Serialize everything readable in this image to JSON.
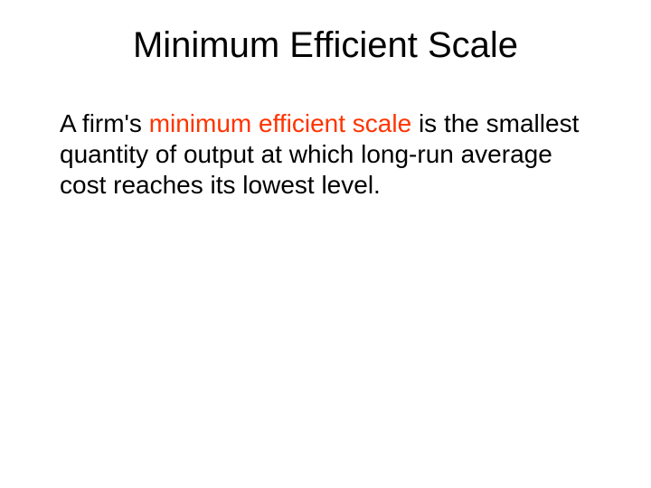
{
  "slide": {
    "title": "Minimum Efficient Scale",
    "body_pre": "A firm's ",
    "body_term": "minimum efficient scale",
    "body_post": " is the smallest quantity of output at which long-run average cost reaches its lowest level."
  },
  "style": {
    "background_color": "#ffffff",
    "title_color": "#000000",
    "body_color": "#000000",
    "term_color": "#ff3300",
    "title_fontsize": 40,
    "body_fontsize": 28,
    "font_family": "Arial"
  }
}
